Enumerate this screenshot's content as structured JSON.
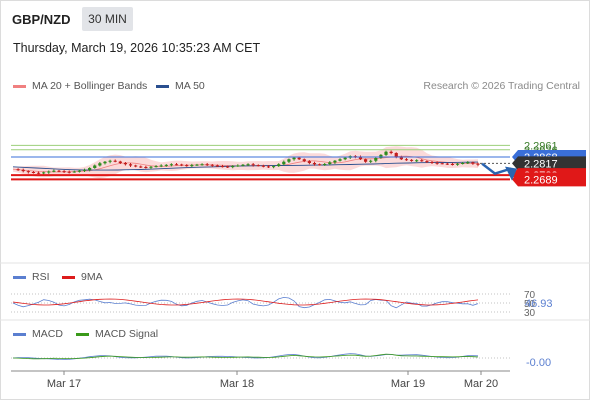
{
  "header": {
    "symbol": "GBP/NZD",
    "timeframe": "30 MIN",
    "datetime": "Thursday, March 19, 2026 10:35:23 AM CET",
    "copyright": "Research © 2026 Trading Central"
  },
  "legends": {
    "main": [
      {
        "label": "MA 20 + Bollinger Bands",
        "color": "#f08080"
      },
      {
        "label": "MA 50",
        "color": "#2a4f8f"
      }
    ],
    "rsi": [
      {
        "label": "RSI",
        "color": "#5b7fd0"
      },
      {
        "label": "9MA",
        "color": "#dd1c1c"
      }
    ],
    "macd": [
      {
        "label": "MACD",
        "color": "#5b7fd0"
      },
      {
        "label": "MACD Signal",
        "color": "#3a9a1a"
      }
    ]
  },
  "colors": {
    "bull": "#2e8b1e",
    "bear": "#c21e1e",
    "resistance": "#9ccf7a",
    "pivot": "#3a6fd8",
    "support": "#e01818",
    "band_fill": "#fbdada",
    "arrow": "#2a64b0"
  },
  "chart_data": {
    "type": "candlestick",
    "x_labels": [
      "Mar 17",
      "Mar 18",
      "Mar 19",
      "Mar 20"
    ],
    "levels": [
      {
        "value": 2.2961,
        "label": "2.2961",
        "kind": "resistance"
      },
      {
        "value": 2.2926,
        "label": "2.2926",
        "kind": "resistance"
      },
      {
        "value": 2.2868,
        "label": "2.2868",
        "kind": "pivot"
      },
      {
        "value": 2.2817,
        "label": "2.2817",
        "kind": "last"
      },
      {
        "value": 2.2723,
        "label": "2.2723",
        "kind": "support"
      },
      {
        "value": 2.2689,
        "label": "2.2689",
        "kind": "support"
      }
    ],
    "close_path": [
      2.277,
      2.2765,
      2.2755,
      2.2748,
      2.2742,
      2.2738,
      2.2745,
      2.2752,
      2.2758,
      2.2755,
      2.275,
      2.2748,
      2.2752,
      2.2758,
      2.2765,
      2.278,
      2.28,
      2.2818,
      2.283,
      2.2838,
      2.2832,
      2.282,
      2.281,
      2.28,
      2.2792,
      2.2788,
      2.2785,
      2.279,
      2.2795,
      2.28,
      2.2805,
      2.281,
      2.2808,
      2.2803,
      2.28,
      2.2803,
      2.2807,
      2.281,
      2.2806,
      2.28,
      2.2795,
      2.2792,
      2.279,
      2.2795,
      2.28,
      2.2806,
      2.281,
      2.2803,
      2.2798,
      2.2793,
      2.279,
      2.2795,
      2.281,
      2.283,
      2.285,
      2.2862,
      2.285,
      2.2835,
      2.282,
      2.281,
      2.2805,
      2.2812,
      2.2825,
      2.2838,
      2.285,
      2.2862,
      2.2875,
      2.287,
      2.285,
      2.283,
      2.2838,
      2.286,
      2.2885,
      2.291,
      2.29,
      2.287,
      2.285,
      2.2845,
      2.284,
      2.2842,
      2.2835,
      2.2828,
      2.2822,
      2.2818,
      2.2815,
      2.2812,
      2.281,
      2.2814,
      2.282,
      2.2825,
      2.2815,
      2.2806
    ],
    "ma50_path": [
      2.279,
      2.2785,
      2.278,
      2.2775,
      2.277,
      2.2766,
      2.2764,
      2.2763,
      2.2763,
      2.2764,
      2.2766,
      2.2768,
      2.2771,
      2.2775,
      2.2779,
      2.2783,
      2.2786,
      2.2789,
      2.2792,
      2.2795,
      2.2797,
      2.2798,
      2.2799,
      2.28,
      2.2801,
      2.2802,
      2.2803,
      2.2804,
      2.2806,
      2.2808,
      2.281,
      2.2812,
      2.2815,
      2.2818,
      2.282,
      2.2822,
      2.2823,
      2.2824,
      2.2825,
      2.2826,
      2.2827
    ],
    "rsi_scale": [
      "70",
      "50",
      "30"
    ],
    "rsi_value": "46.93",
    "macd_value": "-0.00",
    "arrow_target": 2.2695
  }
}
